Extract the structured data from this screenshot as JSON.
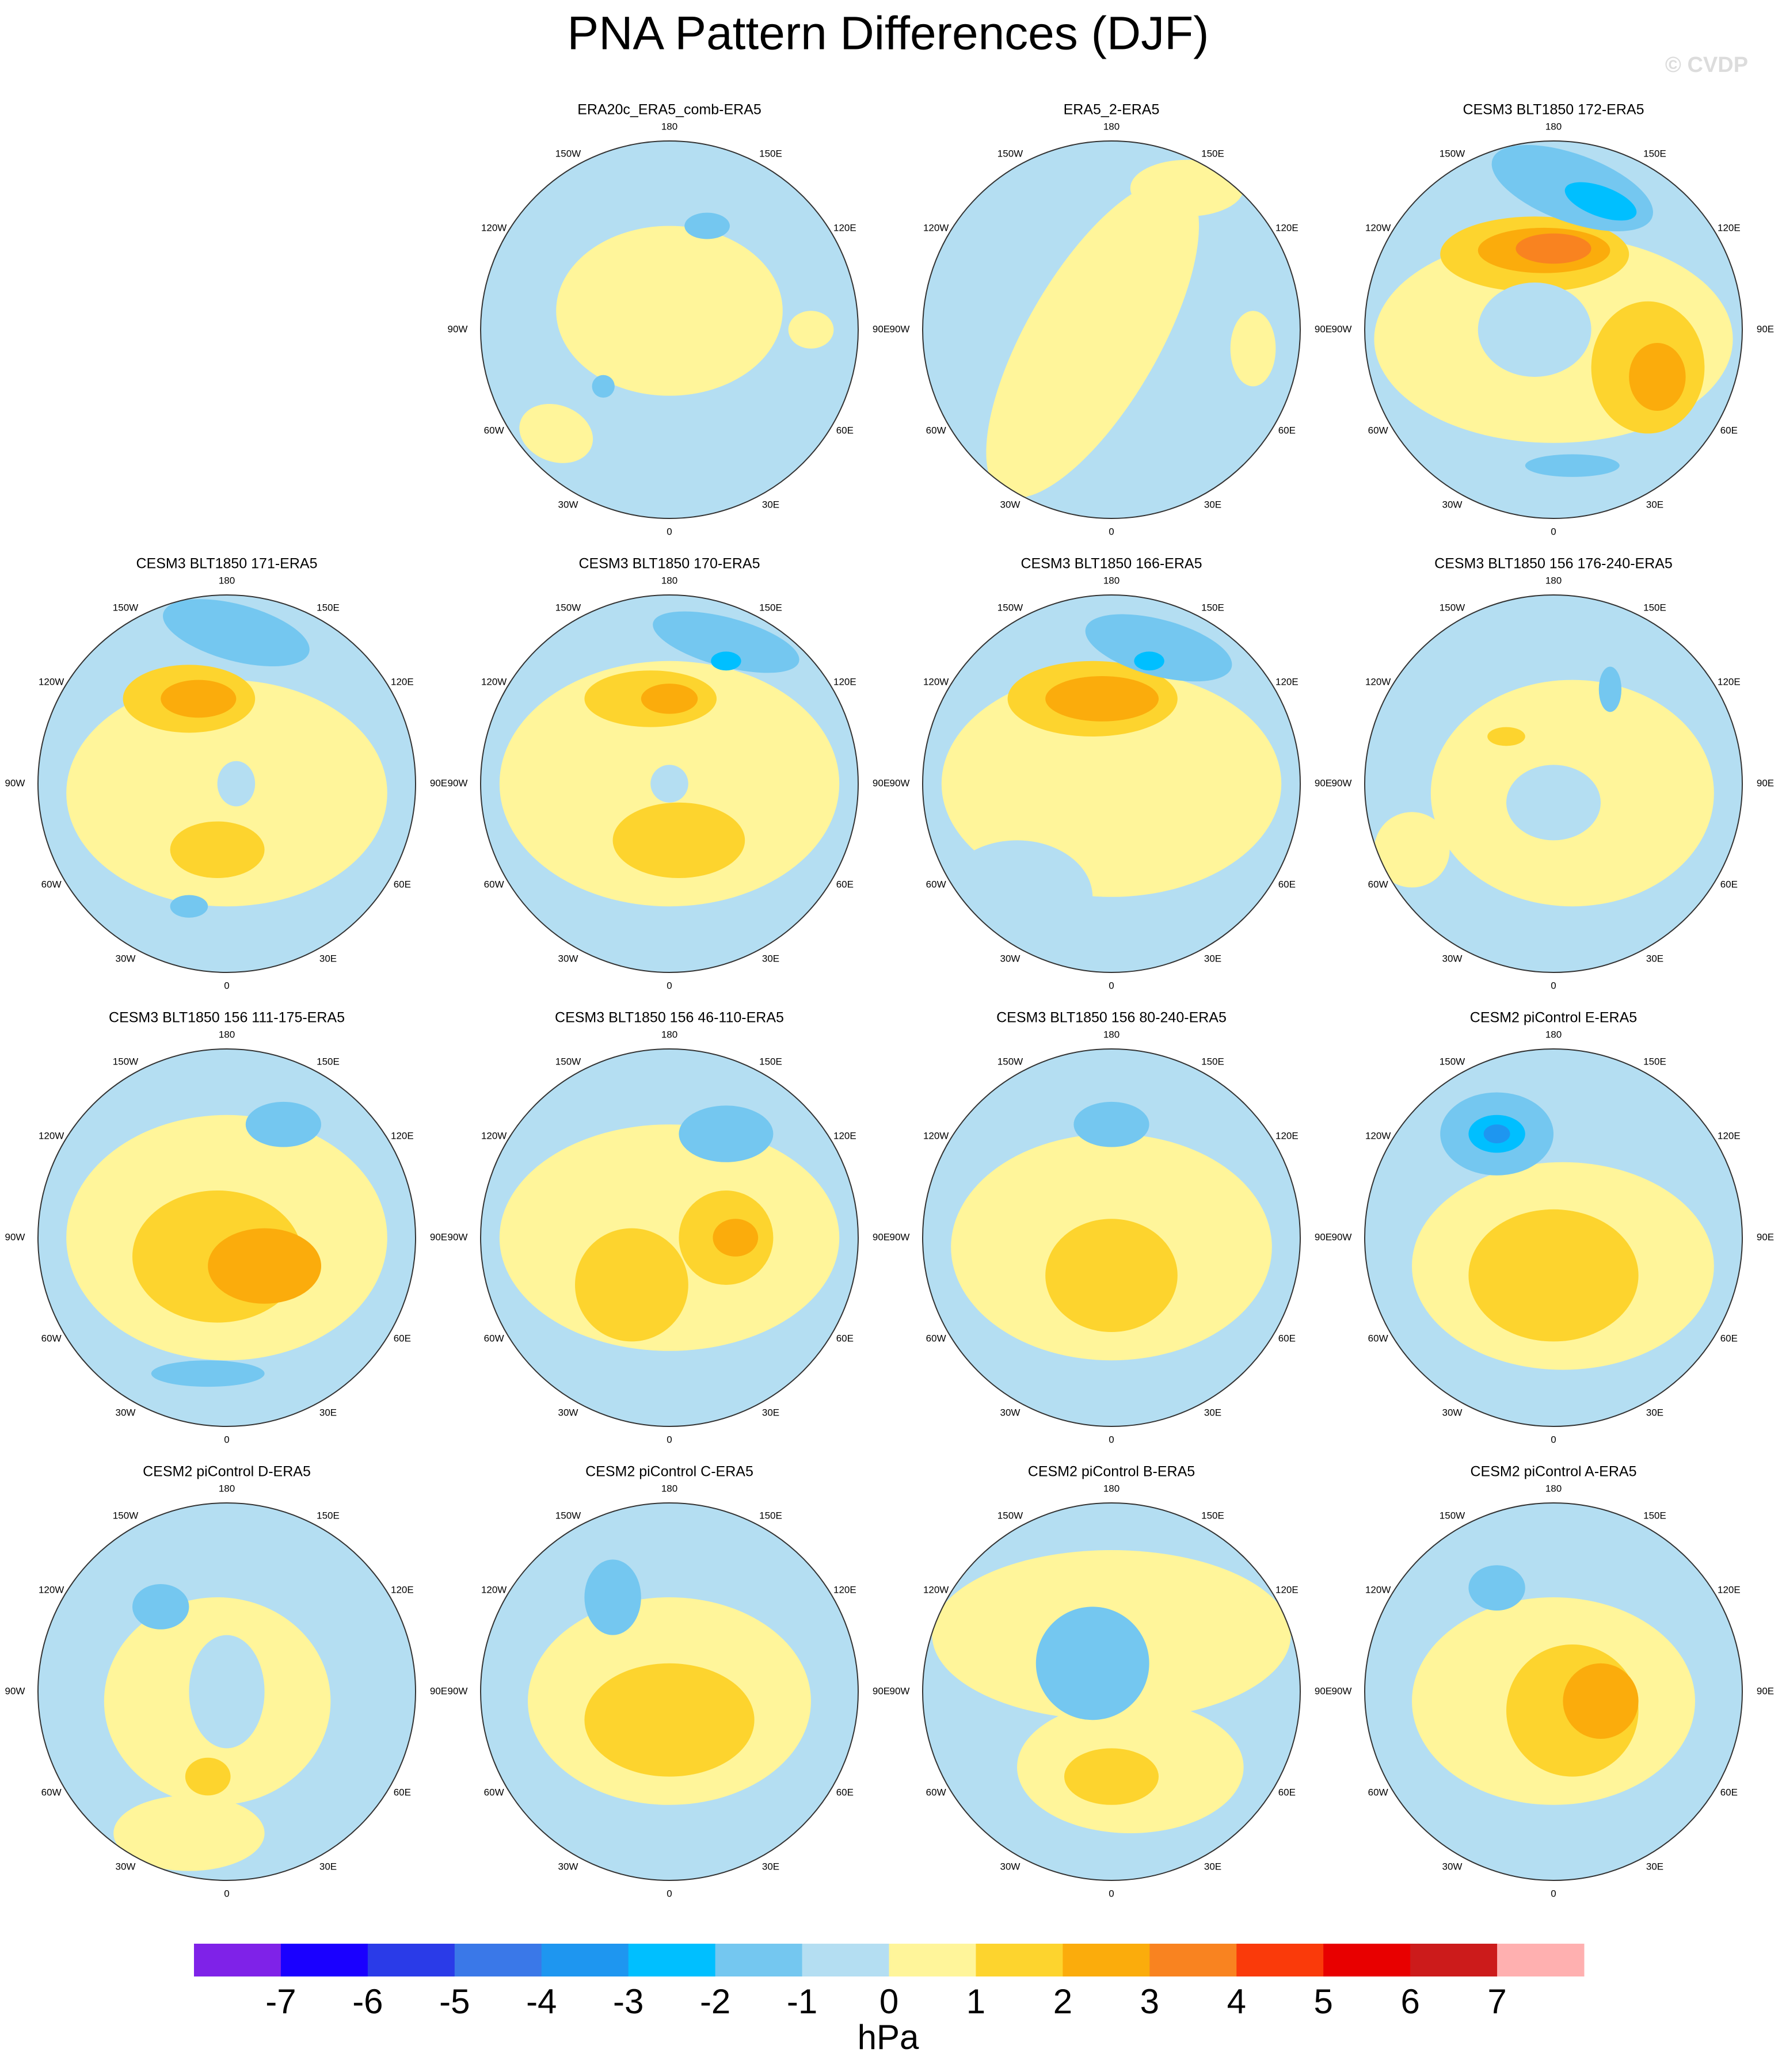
{
  "title": "PNA Pattern Differences (DJF)",
  "watermark": "© CVDP",
  "longitude_labels": [
    "180",
    "150E",
    "120E",
    "90E",
    "60E",
    "30E",
    "0",
    "30W",
    "60W",
    "90W",
    "120W",
    "150W"
  ],
  "panels": [
    {
      "title": "ERA20c_ERA5_comb-ERA5"
    },
    {
      "title": "ERA5_2-ERA5"
    },
    {
      "title": "CESM3 BLT1850 172-ERA5"
    },
    {
      "title": "CESM3 BLT1850 171-ERA5"
    },
    {
      "title": "CESM3 BLT1850 170-ERA5"
    },
    {
      "title": "CESM3 BLT1850 166-ERA5"
    },
    {
      "title": "CESM3 BLT1850 156 176-240-ERA5"
    },
    {
      "title": "CESM3 BLT1850 156 111-175-ERA5"
    },
    {
      "title": "CESM3 BLT1850 156 46-110-ERA5"
    },
    {
      "title": "CESM3 BLT1850 156 80-240-ERA5"
    },
    {
      "title": "CESM2 piControl E-ERA5"
    },
    {
      "title": "CESM2 piControl D-ERA5"
    },
    {
      "title": "CESM2 piControl C-ERA5"
    },
    {
      "title": "CESM2 piControl B-ERA5"
    },
    {
      "title": "CESM2 piControl A-ERA5"
    }
  ],
  "colorbar": {
    "colors": [
      "#7f22e8",
      "#1a00ff",
      "#2a3be8",
      "#3a78e8",
      "#1e96f0",
      "#00bfff",
      "#74c7f0",
      "#b4def2",
      "#fff59a",
      "#fdd42e",
      "#fbac0c",
      "#f98320",
      "#fa3a0a",
      "#e80000",
      "#cc1b1b",
      "#ffb0b0"
    ],
    "ticks": [
      -7,
      -6,
      -5,
      -4,
      -3,
      -2,
      -1,
      0,
      1,
      2,
      3,
      4,
      5,
      6,
      7
    ],
    "label": "hPa"
  }
}
